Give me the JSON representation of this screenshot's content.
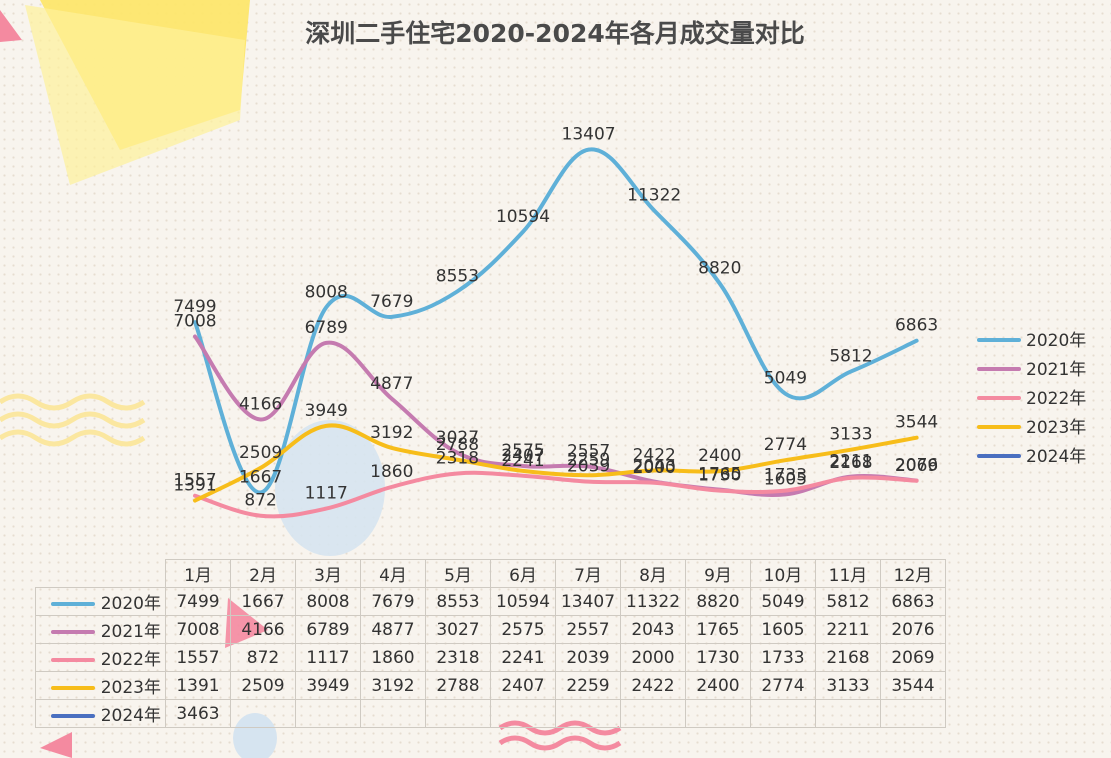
{
  "chart_data": {
    "type": "line",
    "title": "深圳二手住宅2020-2024年各月成交量对比",
    "categories": [
      "1月",
      "2月",
      "3月",
      "4月",
      "5月",
      "6月",
      "7月",
      "8月",
      "9月",
      "10月",
      "11月",
      "12月"
    ],
    "ylim": [
      0,
      14000
    ],
    "legend_position": "right",
    "series": [
      {
        "name": "2020年",
        "color": "#5fb0d8",
        "values": [
          7499,
          1667,
          8008,
          7679,
          8553,
          10594,
          13407,
          11322,
          8820,
          5049,
          5812,
          6863
        ]
      },
      {
        "name": "2021年",
        "color": "#c57bb0",
        "values": [
          7008,
          4166,
          6789,
          4877,
          3027,
          2575,
          2557,
          2043,
          1765,
          1605,
          2211,
          2076
        ]
      },
      {
        "name": "2022年",
        "color": "#f48aa0",
        "values": [
          1557,
          872,
          1117,
          1860,
          2318,
          2241,
          2039,
          2000,
          1730,
          1733,
          2168,
          2069
        ]
      },
      {
        "name": "2023年",
        "color": "#f7bd1a",
        "values": [
          1391,
          2509,
          3949,
          3192,
          2788,
          2407,
          2259,
          2422,
          2400,
          2774,
          3133,
          3544
        ]
      },
      {
        "name": "2024年",
        "color": "#4a6fc0",
        "values": [
          3463,
          null,
          null,
          null,
          null,
          null,
          null,
          null,
          null,
          null,
          null,
          null
        ]
      }
    ]
  }
}
